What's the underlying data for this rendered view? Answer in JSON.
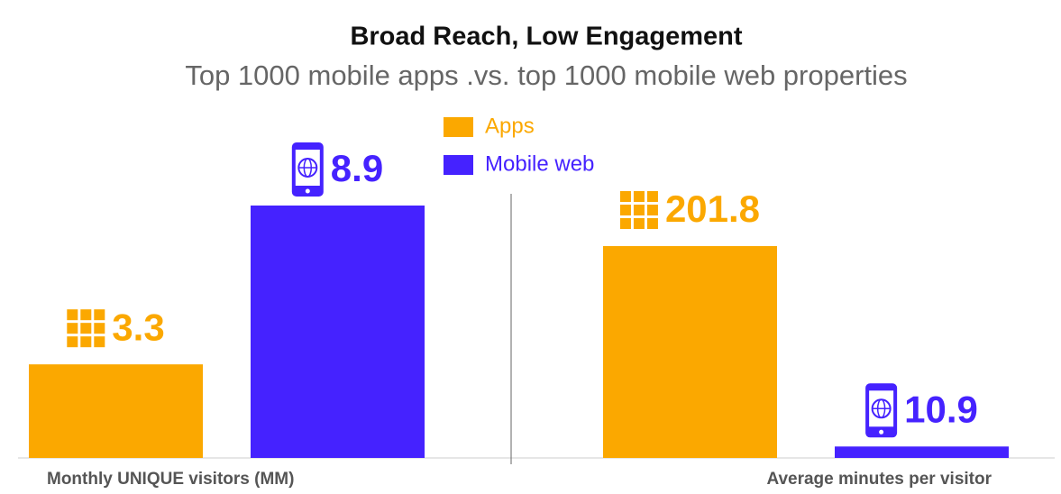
{
  "title": "Broad Reach, Low Engagement",
  "subtitle": "Top 1000 mobile apps .vs. top 1000 mobile web properties",
  "chart_data": [
    {
      "type": "bar",
      "x_label": "Monthly UNIQUE visitors (MM)",
      "series": [
        {
          "name": "Apps",
          "color": "#fba800",
          "values": [
            3.3
          ]
        },
        {
          "name": "Mobile web",
          "color": "#4522ff",
          "values": [
            8.9
          ]
        }
      ]
    },
    {
      "type": "bar",
      "x_label": "Average minutes per visitor",
      "series": [
        {
          "name": "Apps",
          "color": "#fba800",
          "values": [
            201.8
          ]
        },
        {
          "name": "Mobile web",
          "color": "#4522ff",
          "values": [
            10.9
          ]
        }
      ]
    }
  ]
}
